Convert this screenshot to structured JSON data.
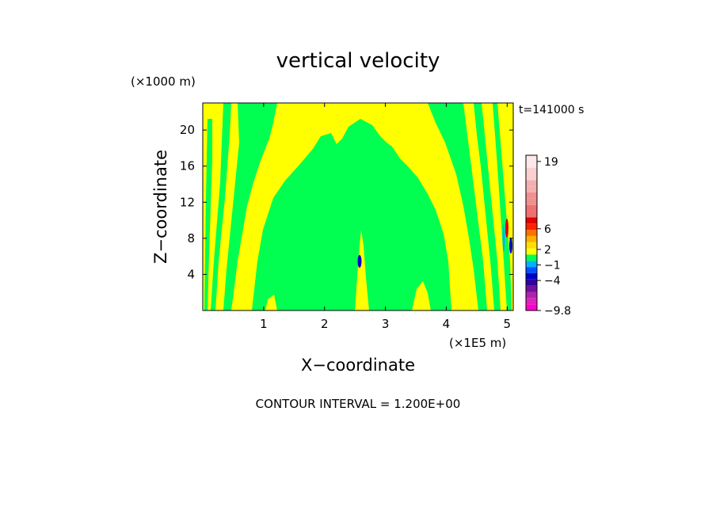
{
  "chart_data": {
    "type": "heatmap",
    "title": "vertical velocity",
    "xlabel": "X−coordinate",
    "ylabel": "Z−coordinate",
    "x_unit": "(×1E5 m)",
    "y_unit": "(×1000 m)",
    "time_label": "t=141000 s",
    "footer": "CONTOUR INTERVAL = 1.200E+00",
    "xlim": [
      0,
      5.1
    ],
    "ylim": [
      0,
      23
    ],
    "x_ticks": [
      "1",
      "2",
      "3",
      "4",
      "5"
    ],
    "y_ticks": [
      "4",
      "8",
      "12",
      "16",
      "20"
    ],
    "colorbar": {
      "tick_labels": [
        "19",
        "6",
        "2",
        "−1",
        "−4",
        "−9.8"
      ],
      "levels": [
        -9.8,
        -8.6,
        -7.4,
        -6.2,
        -5.0,
        -3.8,
        -2.6,
        -1.4,
        -0.2,
        1.0,
        2.2,
        3.4,
        4.6,
        5.8,
        7.0,
        8.2,
        9.4,
        10.6,
        11.8,
        13.0,
        14.2,
        15.4,
        16.6,
        17.8,
        19.0,
        20.2
      ],
      "colors": [
        "#ff00cc",
        "#e020c0",
        "#b020b0",
        "#7010a0",
        "#3000a0",
        "#0000c8",
        "#0050ff",
        "#00b0ff",
        "#00ff50",
        "#ffff00",
        "#ffe000",
        "#ffb000",
        "#ff7000",
        "#ff2000",
        "#e00000",
        "#f07070",
        "#f07070",
        "#f09090",
        "#f09090",
        "#f4b0b0",
        "#f4b0b0",
        "#f8d0d0",
        "#f8d0d0",
        "#fce8e8",
        "#fce8e8"
      ]
    }
  }
}
